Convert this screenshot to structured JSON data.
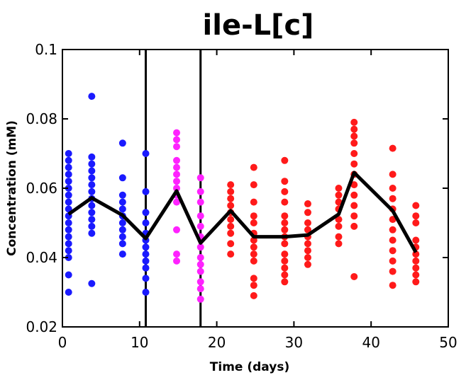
{
  "chart_data": {
    "type": "scatter",
    "title": "ile-L[c]",
    "xlabel": "Time (days)",
    "ylabel": "Concentration (mM)",
    "xlim": [
      0,
      50
    ],
    "ylim": [
      0.02,
      0.1
    ],
    "xticks": [
      "0",
      "10",
      "20",
      "30",
      "40",
      "50"
    ],
    "yticks": [
      "0.02",
      "0.04",
      "0.06",
      "0.08",
      "0.1"
    ],
    "grid": false,
    "legend": "none",
    "vlines": [
      10.8,
      17.9
    ],
    "colors": {
      "blue": "#1a1aff",
      "magenta": "#ff22ff",
      "red": "#ff1a1a",
      "line": "#000000"
    },
    "series": [
      {
        "color": "blue",
        "points": [
          [
            0.8,
            0.03
          ],
          [
            0.8,
            0.035
          ],
          [
            0.8,
            0.04
          ],
          [
            0.8,
            0.042
          ],
          [
            0.8,
            0.044
          ],
          [
            0.8,
            0.046
          ],
          [
            0.8,
            0.048
          ],
          [
            0.8,
            0.05
          ],
          [
            0.8,
            0.052
          ],
          [
            0.8,
            0.054
          ],
          [
            0.8,
            0.056
          ],
          [
            0.8,
            0.058
          ],
          [
            0.8,
            0.06
          ],
          [
            0.8,
            0.062
          ],
          [
            0.8,
            0.064
          ],
          [
            0.8,
            0.066
          ],
          [
            0.8,
            0.068
          ],
          [
            0.8,
            0.07
          ],
          [
            3.8,
            0.0325
          ],
          [
            3.8,
            0.047
          ],
          [
            3.8,
            0.049
          ],
          [
            3.8,
            0.051
          ],
          [
            3.8,
            0.053
          ],
          [
            3.8,
            0.055
          ],
          [
            3.8,
            0.057
          ],
          [
            3.8,
            0.059
          ],
          [
            3.8,
            0.061
          ],
          [
            3.8,
            0.063
          ],
          [
            3.8,
            0.065
          ],
          [
            3.8,
            0.067
          ],
          [
            3.8,
            0.069
          ],
          [
            3.8,
            0.0865
          ],
          [
            7.8,
            0.041
          ],
          [
            7.8,
            0.044
          ],
          [
            7.8,
            0.046
          ],
          [
            7.8,
            0.048
          ],
          [
            7.8,
            0.05
          ],
          [
            7.8,
            0.052
          ],
          [
            7.8,
            0.054
          ],
          [
            7.8,
            0.056
          ],
          [
            7.8,
            0.058
          ],
          [
            7.8,
            0.063
          ],
          [
            7.8,
            0.073
          ],
          [
            10.8,
            0.03
          ],
          [
            10.8,
            0.034
          ],
          [
            10.8,
            0.037
          ],
          [
            10.8,
            0.039
          ],
          [
            10.8,
            0.041
          ],
          [
            10.8,
            0.043
          ],
          [
            10.8,
            0.045
          ],
          [
            10.8,
            0.047
          ],
          [
            10.8,
            0.05
          ],
          [
            10.8,
            0.053
          ],
          [
            10.8,
            0.059
          ],
          [
            10.8,
            0.07
          ]
        ]
      },
      {
        "color": "magenta",
        "points": [
          [
            14.8,
            0.039
          ],
          [
            14.8,
            0.041
          ],
          [
            14.8,
            0.048
          ],
          [
            14.8,
            0.056
          ],
          [
            14.8,
            0.058
          ],
          [
            14.8,
            0.06
          ],
          [
            14.8,
            0.062
          ],
          [
            14.8,
            0.064
          ],
          [
            14.8,
            0.066
          ],
          [
            14.8,
            0.068
          ],
          [
            14.8,
            0.072
          ],
          [
            14.8,
            0.074
          ],
          [
            14.8,
            0.076
          ],
          [
            17.9,
            0.028
          ],
          [
            17.9,
            0.031
          ],
          [
            17.9,
            0.033
          ],
          [
            17.9,
            0.036
          ],
          [
            17.9,
            0.038
          ],
          [
            17.9,
            0.04
          ],
          [
            17.9,
            0.043
          ],
          [
            17.9,
            0.046
          ],
          [
            17.9,
            0.049
          ],
          [
            17.9,
            0.052
          ],
          [
            17.9,
            0.056
          ],
          [
            17.9,
            0.059
          ],
          [
            17.9,
            0.063
          ]
        ]
      },
      {
        "color": "red",
        "points": [
          [
            21.8,
            0.041
          ],
          [
            21.8,
            0.044
          ],
          [
            21.8,
            0.047
          ],
          [
            21.8,
            0.049
          ],
          [
            21.8,
            0.051
          ],
          [
            21.8,
            0.053
          ],
          [
            21.8,
            0.055
          ],
          [
            21.8,
            0.057
          ],
          [
            21.8,
            0.059
          ],
          [
            21.8,
            0.061
          ],
          [
            24.8,
            0.029
          ],
          [
            24.8,
            0.032
          ],
          [
            24.8,
            0.034
          ],
          [
            24.8,
            0.039
          ],
          [
            24.8,
            0.041
          ],
          [
            24.8,
            0.043
          ],
          [
            24.8,
            0.045
          ],
          [
            24.8,
            0.047
          ],
          [
            24.8,
            0.05
          ],
          [
            24.8,
            0.052
          ],
          [
            24.8,
            0.056
          ],
          [
            24.8,
            0.061
          ],
          [
            24.8,
            0.066
          ],
          [
            28.8,
            0.033
          ],
          [
            28.8,
            0.035
          ],
          [
            28.8,
            0.037
          ],
          [
            28.8,
            0.039
          ],
          [
            28.8,
            0.041
          ],
          [
            28.8,
            0.044
          ],
          [
            28.8,
            0.046
          ],
          [
            28.8,
            0.048
          ],
          [
            28.8,
            0.05
          ],
          [
            28.8,
            0.052
          ],
          [
            28.8,
            0.056
          ],
          [
            28.8,
            0.059
          ],
          [
            28.8,
            0.062
          ],
          [
            28.8,
            0.068
          ],
          [
            31.8,
            0.038
          ],
          [
            31.8,
            0.04
          ],
          [
            31.8,
            0.042
          ],
          [
            31.8,
            0.044
          ],
          [
            31.8,
            0.046
          ],
          [
            31.8,
            0.048
          ],
          [
            31.8,
            0.05
          ],
          [
            31.8,
            0.053
          ],
          [
            31.8,
            0.0555
          ],
          [
            35.8,
            0.044
          ],
          [
            35.8,
            0.046
          ],
          [
            35.8,
            0.049
          ],
          [
            35.8,
            0.051
          ],
          [
            35.8,
            0.054
          ],
          [
            35.8,
            0.056
          ],
          [
            35.8,
            0.058
          ],
          [
            35.8,
            0.06
          ],
          [
            37.8,
            0.0345
          ],
          [
            37.8,
            0.049
          ],
          [
            37.8,
            0.052
          ],
          [
            37.8,
            0.055
          ],
          [
            37.8,
            0.058
          ],
          [
            37.8,
            0.061
          ],
          [
            37.8,
            0.064
          ],
          [
            37.8,
            0.067
          ],
          [
            37.8,
            0.07
          ],
          [
            37.8,
            0.073
          ],
          [
            37.8,
            0.075
          ],
          [
            37.8,
            0.077
          ],
          [
            37.8,
            0.079
          ],
          [
            42.8,
            0.032
          ],
          [
            42.8,
            0.036
          ],
          [
            42.8,
            0.039
          ],
          [
            42.8,
            0.042
          ],
          [
            42.8,
            0.045
          ],
          [
            42.8,
            0.048
          ],
          [
            42.8,
            0.051
          ],
          [
            42.8,
            0.054
          ],
          [
            42.8,
            0.057
          ],
          [
            42.8,
            0.06
          ],
          [
            42.8,
            0.064
          ],
          [
            42.8,
            0.0715
          ],
          [
            45.8,
            0.033
          ],
          [
            45.8,
            0.035
          ],
          [
            45.8,
            0.037
          ],
          [
            45.8,
            0.039
          ],
          [
            45.8,
            0.041
          ],
          [
            45.8,
            0.043
          ],
          [
            45.8,
            0.045
          ],
          [
            45.8,
            0.05
          ],
          [
            45.8,
            0.052
          ],
          [
            45.8,
            0.055
          ]
        ]
      }
    ],
    "mean_line": {
      "x": [
        0.8,
        3.8,
        7.8,
        10.8,
        14.8,
        17.9,
        21.8,
        24.8,
        28.8,
        31.8,
        35.8,
        37.8,
        42.8,
        45.8
      ],
      "y": [
        0.0525,
        0.0572,
        0.0522,
        0.0455,
        0.0592,
        0.0442,
        0.0535,
        0.046,
        0.046,
        0.0465,
        0.0525,
        0.0645,
        0.0535,
        0.0415
      ]
    }
  }
}
